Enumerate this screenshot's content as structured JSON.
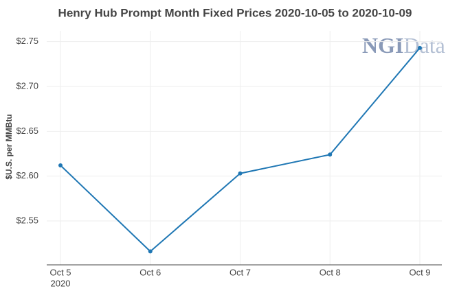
{
  "chart_data": {
    "type": "line",
    "title": "Henry Hub Prompt Month Fixed Prices 2020-10-05 to 2020-10-09",
    "y_label": "$U.S. per MMBtu",
    "watermark": [
      "NGI",
      "Data"
    ],
    "categories": [
      "Oct 5",
      "Oct 6",
      "Oct 7",
      "Oct 8",
      "Oct 9"
    ],
    "x_year_label": "2020",
    "series": [
      {
        "name": "Henry Hub",
        "color": "#1f77b4",
        "values": [
          2.612,
          2.516,
          2.603,
          2.624,
          2.743
        ]
      }
    ],
    "ylim": [
      2.501,
      2.762
    ],
    "yticks": [
      {
        "value": 2.55,
        "label": "$2.55"
      },
      {
        "value": 2.6,
        "label": "$2.60"
      },
      {
        "value": 2.65,
        "label": "$2.65"
      },
      {
        "value": 2.7,
        "label": "$2.70"
      },
      {
        "value": 2.75,
        "label": "$2.75"
      }
    ],
    "grid": true
  }
}
